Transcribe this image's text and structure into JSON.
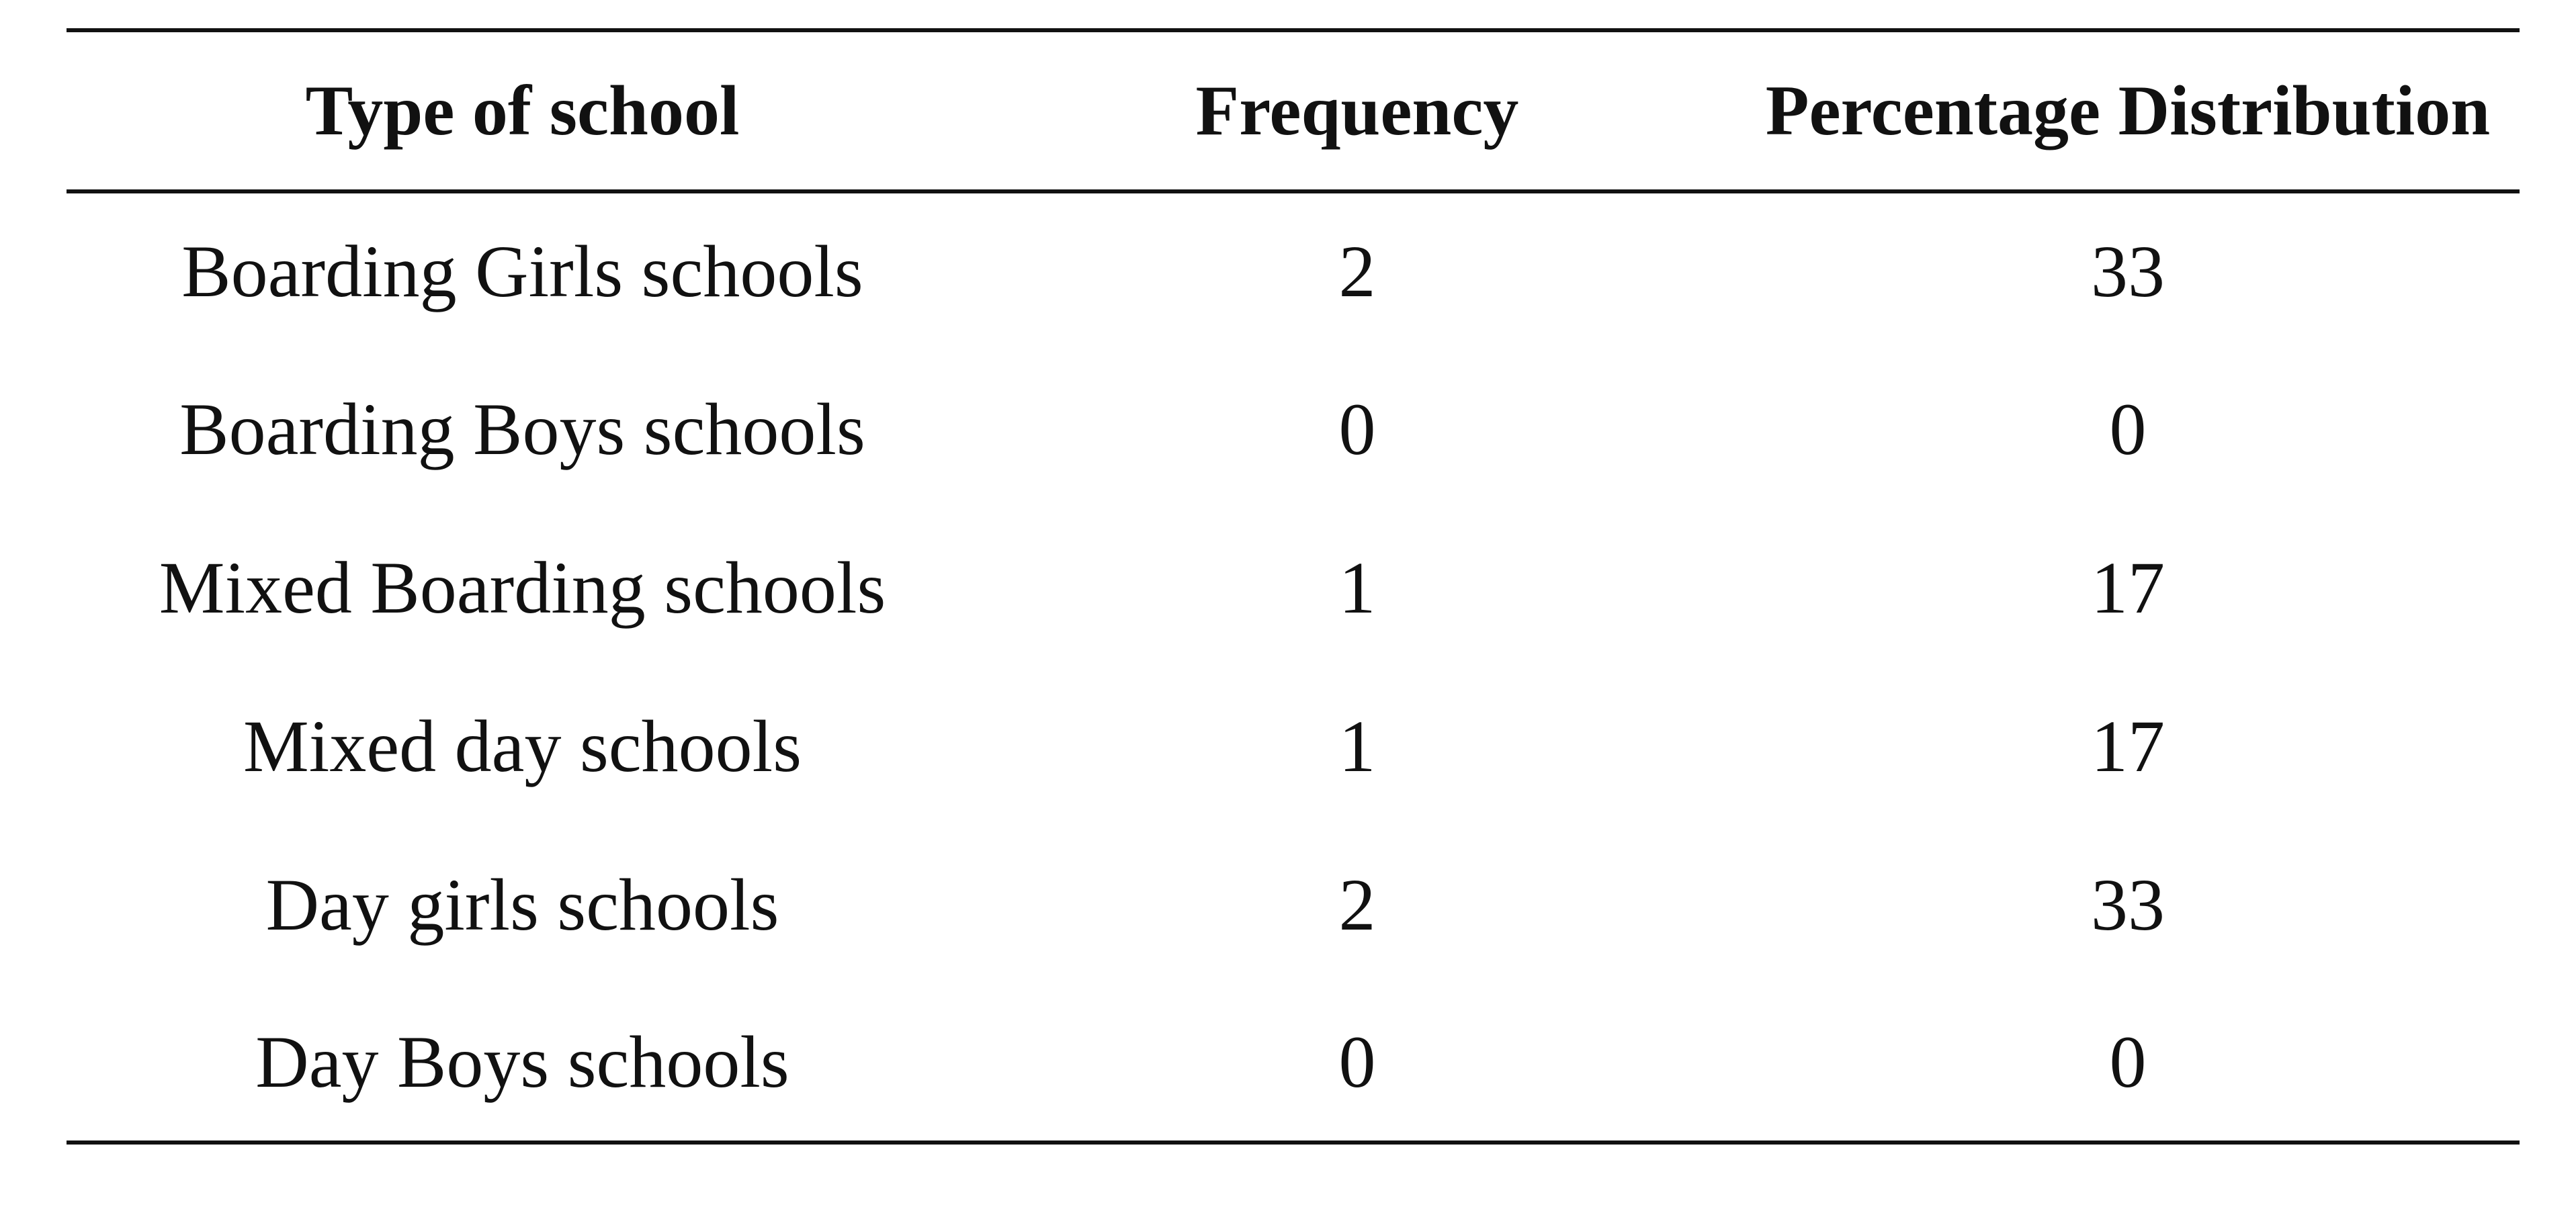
{
  "table": {
    "headers": [
      "Type of school",
      "Frequency",
      "Percentage Distribution"
    ],
    "rows": [
      [
        "Boarding Girls schools",
        "2",
        "33"
      ],
      [
        "Boarding Boys schools",
        "0",
        "0"
      ],
      [
        "Mixed Boarding schools",
        "1",
        "17"
      ],
      [
        "Mixed day schools",
        "1",
        "17"
      ],
      [
        "Day girls schools",
        "2",
        "33"
      ],
      [
        "Day Boys schools",
        "0",
        "0"
      ]
    ]
  }
}
